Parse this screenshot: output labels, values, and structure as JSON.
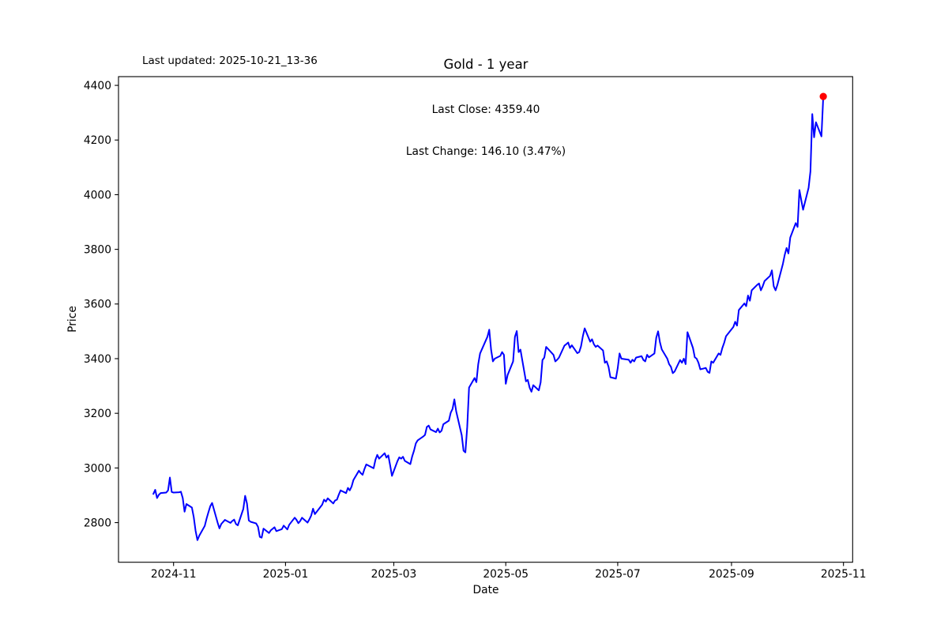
{
  "header": {
    "last_updated": "Last updated: 2025-10-21_13-36"
  },
  "chart_data": {
    "type": "line",
    "title": "Gold - 1 year",
    "xlabel": "Date",
    "ylabel": "Price",
    "annotation": {
      "line1": "Last Close: 4359.40",
      "line2": "Last Change: 146.10 (3.47%)"
    },
    "last_close": 4359.4,
    "last_change": "146.10 (3.47%)",
    "line_color": "#0000ff",
    "marker_color": "#ff0000",
    "axis_color": "#000000",
    "grid": false,
    "legend": "none",
    "xlim": [
      "2024-10-02",
      "2025-11-06"
    ],
    "ylim": [
      2655,
      4432
    ],
    "y_ticks": [
      2800,
      3000,
      3200,
      3400,
      3600,
      3800,
      4000,
      4200,
      4400
    ],
    "x_ticks": [
      {
        "label": "2024-11",
        "date": "2024-11-01"
      },
      {
        "label": "2025-01",
        "date": "2025-01-01"
      },
      {
        "label": "2025-03",
        "date": "2025-03-01"
      },
      {
        "label": "2025-05",
        "date": "2025-05-01"
      },
      {
        "label": "2025-07",
        "date": "2025-07-01"
      },
      {
        "label": "2025-09",
        "date": "2025-09-01"
      },
      {
        "label": "2025-11",
        "date": "2025-11-01"
      }
    ],
    "series": [
      {
        "name": "Gold",
        "points": [
          [
            "2024-10-21",
            2905
          ],
          [
            "2024-10-22",
            2920
          ],
          [
            "2024-10-23",
            2890
          ],
          [
            "2024-10-24",
            2902
          ],
          [
            "2024-10-25",
            2908
          ],
          [
            "2024-10-28",
            2910
          ],
          [
            "2024-10-29",
            2918
          ],
          [
            "2024-10-30",
            2965
          ],
          [
            "2024-10-31",
            2912
          ],
          [
            "2024-11-01",
            2910
          ],
          [
            "2024-11-04",
            2911
          ],
          [
            "2024-11-05",
            2913
          ],
          [
            "2024-11-06",
            2890
          ],
          [
            "2024-11-07",
            2840
          ],
          [
            "2024-11-08",
            2868
          ],
          [
            "2024-11-11",
            2855
          ],
          [
            "2024-11-12",
            2820
          ],
          [
            "2024-11-13",
            2770
          ],
          [
            "2024-11-14",
            2736
          ],
          [
            "2024-11-15",
            2752
          ],
          [
            "2024-11-18",
            2788
          ],
          [
            "2024-11-19",
            2815
          ],
          [
            "2024-11-20",
            2838
          ],
          [
            "2024-11-21",
            2860
          ],
          [
            "2024-11-22",
            2872
          ],
          [
            "2024-11-25",
            2800
          ],
          [
            "2024-11-26",
            2779
          ],
          [
            "2024-11-27",
            2795
          ],
          [
            "2024-11-29",
            2810
          ],
          [
            "2024-12-02",
            2799
          ],
          [
            "2024-12-03",
            2806
          ],
          [
            "2024-12-04",
            2811
          ],
          [
            "2024-12-05",
            2795
          ],
          [
            "2024-12-06",
            2790
          ],
          [
            "2024-12-09",
            2850
          ],
          [
            "2024-12-10",
            2898
          ],
          [
            "2024-12-11",
            2870
          ],
          [
            "2024-12-12",
            2808
          ],
          [
            "2024-12-13",
            2803
          ],
          [
            "2024-12-16",
            2797
          ],
          [
            "2024-12-17",
            2785
          ],
          [
            "2024-12-18",
            2748
          ],
          [
            "2024-12-19",
            2745
          ],
          [
            "2024-12-20",
            2778
          ],
          [
            "2024-12-23",
            2762
          ],
          [
            "2024-12-24",
            2772
          ],
          [
            "2024-12-26",
            2783
          ],
          [
            "2024-12-27",
            2769
          ],
          [
            "2024-12-30",
            2776
          ],
          [
            "2024-12-31",
            2789
          ],
          [
            "2025-01-02",
            2775
          ],
          [
            "2025-01-03",
            2792
          ],
          [
            "2025-01-06",
            2818
          ],
          [
            "2025-01-07",
            2810
          ],
          [
            "2025-01-08",
            2798
          ],
          [
            "2025-01-09",
            2806
          ],
          [
            "2025-01-10",
            2818
          ],
          [
            "2025-01-13",
            2800
          ],
          [
            "2025-01-14",
            2812
          ],
          [
            "2025-01-15",
            2826
          ],
          [
            "2025-01-16",
            2851
          ],
          [
            "2025-01-17",
            2831
          ],
          [
            "2025-01-21",
            2866
          ],
          [
            "2025-01-22",
            2884
          ],
          [
            "2025-01-23",
            2877
          ],
          [
            "2025-01-24",
            2889
          ],
          [
            "2025-01-27",
            2870
          ],
          [
            "2025-01-28",
            2881
          ],
          [
            "2025-01-29",
            2884
          ],
          [
            "2025-01-30",
            2902
          ],
          [
            "2025-01-31",
            2918
          ],
          [
            "2025-02-03",
            2908
          ],
          [
            "2025-02-04",
            2927
          ],
          [
            "2025-02-05",
            2918
          ],
          [
            "2025-02-06",
            2932
          ],
          [
            "2025-02-07",
            2956
          ],
          [
            "2025-02-10",
            2990
          ],
          [
            "2025-02-11",
            2981
          ],
          [
            "2025-02-12",
            2975
          ],
          [
            "2025-02-13",
            2996
          ],
          [
            "2025-02-14",
            3013
          ],
          [
            "2025-02-18",
            2999
          ],
          [
            "2025-02-19",
            3030
          ],
          [
            "2025-02-20",
            3048
          ],
          [
            "2025-02-21",
            3034
          ],
          [
            "2025-02-24",
            3054
          ],
          [
            "2025-02-25",
            3038
          ],
          [
            "2025-02-26",
            3046
          ],
          [
            "2025-02-27",
            3010
          ],
          [
            "2025-02-28",
            2971
          ],
          [
            "2025-03-03",
            3025
          ],
          [
            "2025-03-04",
            3039
          ],
          [
            "2025-03-05",
            3034
          ],
          [
            "2025-03-06",
            3041
          ],
          [
            "2025-03-07",
            3026
          ],
          [
            "2025-03-10",
            3014
          ],
          [
            "2025-03-11",
            3042
          ],
          [
            "2025-03-12",
            3063
          ],
          [
            "2025-03-13",
            3090
          ],
          [
            "2025-03-14",
            3101
          ],
          [
            "2025-03-17",
            3115
          ],
          [
            "2025-03-18",
            3121
          ],
          [
            "2025-03-19",
            3150
          ],
          [
            "2025-03-20",
            3155
          ],
          [
            "2025-03-21",
            3141
          ],
          [
            "2025-03-24",
            3131
          ],
          [
            "2025-03-25",
            3144
          ],
          [
            "2025-03-26",
            3130
          ],
          [
            "2025-03-27",
            3136
          ],
          [
            "2025-03-28",
            3160
          ],
          [
            "2025-03-31",
            3173
          ],
          [
            "2025-04-01",
            3202
          ],
          [
            "2025-04-02",
            3216
          ],
          [
            "2025-04-03",
            3251
          ],
          [
            "2025-04-04",
            3207
          ],
          [
            "2025-04-07",
            3120
          ],
          [
            "2025-04-08",
            3063
          ],
          [
            "2025-04-09",
            3057
          ],
          [
            "2025-04-10",
            3150
          ],
          [
            "2025-04-11",
            3294
          ],
          [
            "2025-04-14",
            3329
          ],
          [
            "2025-04-15",
            3314
          ],
          [
            "2025-04-16",
            3380
          ],
          [
            "2025-04-17",
            3419
          ],
          [
            "2025-04-21",
            3480
          ],
          [
            "2025-04-22",
            3506
          ],
          [
            "2025-04-23",
            3433
          ],
          [
            "2025-04-24",
            3390
          ],
          [
            "2025-04-25",
            3400
          ],
          [
            "2025-04-28",
            3410
          ],
          [
            "2025-04-29",
            3424
          ],
          [
            "2025-04-30",
            3414
          ],
          [
            "2025-05-01",
            3308
          ],
          [
            "2025-05-02",
            3340
          ],
          [
            "2025-05-05",
            3390
          ],
          [
            "2025-05-06",
            3480
          ],
          [
            "2025-05-07",
            3501
          ],
          [
            "2025-05-08",
            3424
          ],
          [
            "2025-05-09",
            3433
          ],
          [
            "2025-05-12",
            3317
          ],
          [
            "2025-05-13",
            3322
          ],
          [
            "2025-05-14",
            3294
          ],
          [
            "2025-05-15",
            3279
          ],
          [
            "2025-05-16",
            3303
          ],
          [
            "2025-05-19",
            3284
          ],
          [
            "2025-05-20",
            3313
          ],
          [
            "2025-05-21",
            3395
          ],
          [
            "2025-05-22",
            3404
          ],
          [
            "2025-05-23",
            3443
          ],
          [
            "2025-05-27",
            3414
          ],
          [
            "2025-05-28",
            3390
          ],
          [
            "2025-05-29",
            3396
          ],
          [
            "2025-05-30",
            3404
          ],
          [
            "2025-06-02",
            3448
          ],
          [
            "2025-06-03",
            3453
          ],
          [
            "2025-06-04",
            3459
          ],
          [
            "2025-06-05",
            3439
          ],
          [
            "2025-06-06",
            3449
          ],
          [
            "2025-06-09",
            3420
          ],
          [
            "2025-06-10",
            3424
          ],
          [
            "2025-06-11",
            3445
          ],
          [
            "2025-06-12",
            3482
          ],
          [
            "2025-06-13",
            3511
          ],
          [
            "2025-06-16",
            3462
          ],
          [
            "2025-06-17",
            3471
          ],
          [
            "2025-06-18",
            3453
          ],
          [
            "2025-06-19",
            3443
          ],
          [
            "2025-06-20",
            3448
          ],
          [
            "2025-06-23",
            3430
          ],
          [
            "2025-06-24",
            3385
          ],
          [
            "2025-06-25",
            3390
          ],
          [
            "2025-06-26",
            3370
          ],
          [
            "2025-06-27",
            3332
          ],
          [
            "2025-06-30",
            3327
          ],
          [
            "2025-07-01",
            3365
          ],
          [
            "2025-07-02",
            3419
          ],
          [
            "2025-07-03",
            3400
          ],
          [
            "2025-07-07",
            3396
          ],
          [
            "2025-07-08",
            3385
          ],
          [
            "2025-07-09",
            3396
          ],
          [
            "2025-07-10",
            3390
          ],
          [
            "2025-07-11",
            3404
          ],
          [
            "2025-07-14",
            3409
          ],
          [
            "2025-07-15",
            3395
          ],
          [
            "2025-07-16",
            3390
          ],
          [
            "2025-07-17",
            3414
          ],
          [
            "2025-07-18",
            3405
          ],
          [
            "2025-07-21",
            3419
          ],
          [
            "2025-07-22",
            3477
          ],
          [
            "2025-07-23",
            3500
          ],
          [
            "2025-07-24",
            3460
          ],
          [
            "2025-07-25",
            3434
          ],
          [
            "2025-07-28",
            3400
          ],
          [
            "2025-07-29",
            3380
          ],
          [
            "2025-07-30",
            3370
          ],
          [
            "2025-07-31",
            3347
          ],
          [
            "2025-08-01",
            3353
          ],
          [
            "2025-08-04",
            3395
          ],
          [
            "2025-08-05",
            3385
          ],
          [
            "2025-08-06",
            3400
          ],
          [
            "2025-08-07",
            3380
          ],
          [
            "2025-08-08",
            3497
          ],
          [
            "2025-08-11",
            3439
          ],
          [
            "2025-08-12",
            3405
          ],
          [
            "2025-08-13",
            3400
          ],
          [
            "2025-08-14",
            3385
          ],
          [
            "2025-08-15",
            3361
          ],
          [
            "2025-08-18",
            3366
          ],
          [
            "2025-08-19",
            3352
          ],
          [
            "2025-08-20",
            3348
          ],
          [
            "2025-08-21",
            3390
          ],
          [
            "2025-08-22",
            3385
          ],
          [
            "2025-08-25",
            3419
          ],
          [
            "2025-08-26",
            3414
          ],
          [
            "2025-08-27",
            3439
          ],
          [
            "2025-08-28",
            3458
          ],
          [
            "2025-08-29",
            3482
          ],
          [
            "2025-09-02",
            3516
          ],
          [
            "2025-09-03",
            3535
          ],
          [
            "2025-09-04",
            3521
          ],
          [
            "2025-09-05",
            3578
          ],
          [
            "2025-09-08",
            3602
          ],
          [
            "2025-09-09",
            3592
          ],
          [
            "2025-09-10",
            3631
          ],
          [
            "2025-09-11",
            3612
          ],
          [
            "2025-09-12",
            3650
          ],
          [
            "2025-09-15",
            3670
          ],
          [
            "2025-09-16",
            3675
          ],
          [
            "2025-09-17",
            3650
          ],
          [
            "2025-09-18",
            3665
          ],
          [
            "2025-09-19",
            3684
          ],
          [
            "2025-09-22",
            3703
          ],
          [
            "2025-09-23",
            3723
          ],
          [
            "2025-09-24",
            3665
          ],
          [
            "2025-09-25",
            3650
          ],
          [
            "2025-09-26",
            3670
          ],
          [
            "2025-09-29",
            3747
          ],
          [
            "2025-09-30",
            3780
          ],
          [
            "2025-10-01",
            3805
          ],
          [
            "2025-10-02",
            3785
          ],
          [
            "2025-10-03",
            3843
          ],
          [
            "2025-10-06",
            3896
          ],
          [
            "2025-10-07",
            3882
          ],
          [
            "2025-10-08",
            4017
          ],
          [
            "2025-10-09",
            3980
          ],
          [
            "2025-10-10",
            3945
          ],
          [
            "2025-10-13",
            4025
          ],
          [
            "2025-10-14",
            4085
          ],
          [
            "2025-10-15",
            4295
          ],
          [
            "2025-10-16",
            4210
          ],
          [
            "2025-10-17",
            4265
          ],
          [
            "2025-10-20",
            4213.3
          ],
          [
            "2025-10-21",
            4359.4
          ]
        ]
      }
    ]
  }
}
